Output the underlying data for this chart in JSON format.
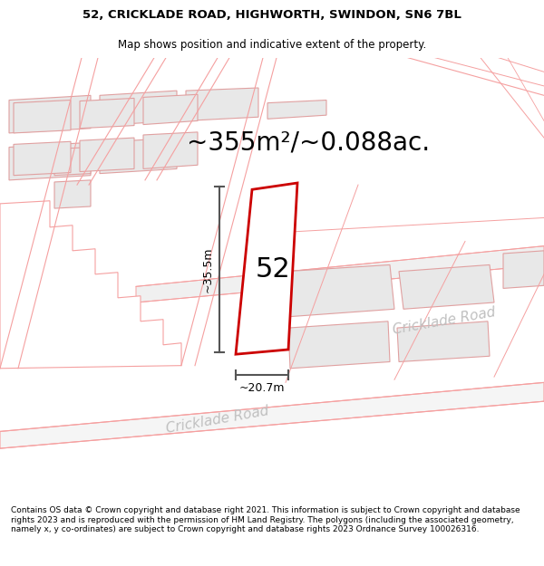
{
  "title_line1": "52, CRICKLADE ROAD, HIGHWORTH, SWINDON, SN6 7BL",
  "title_line2": "Map shows position and indicative extent of the property.",
  "area_text": "~355m²/~0.088ac.",
  "width_label": "~20.7m",
  "height_label": "~35.5m",
  "number_label": "52",
  "road_label_lower": "Cricklade Road",
  "road_label_upper": "Cricklade Road",
  "footer_text": "Contains OS data © Crown copyright and database right 2021. This information is subject to Crown copyright and database rights 2023 and is reproduced with the permission of HM Land Registry. The polygons (including the associated geometry, namely x, y co-ordinates) are subject to Crown copyright and database rights 2023 Ordnance Survey 100026316.",
  "bg_color": "#ffffff",
  "pink": "#f5a0a0",
  "red_plot": "#cc0000",
  "dim_color": "#555555",
  "road_text_color": "#c0c0c0",
  "bld_fill": "#e8e8e8",
  "bld_edge": "#e0a0a0",
  "title_fs": 9.5,
  "area_fs": 20,
  "label_fs": 9,
  "number_fs": 22,
  "footer_fs": 6.5
}
